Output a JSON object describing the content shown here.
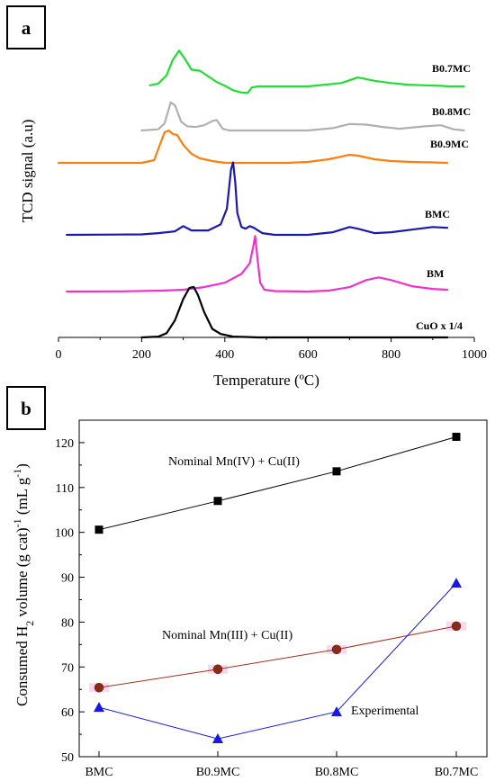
{
  "chart_data": [
    {
      "panel": "a",
      "type": "line",
      "xlabel": "Temperature (ºC)",
      "ylabel": "TCD signal (a.u)",
      "xlim": [
        0,
        1000
      ],
      "x_ticks": [
        0,
        200,
        400,
        600,
        800,
        1000
      ],
      "grid": false,
      "series": [
        {
          "name": "B0.7MC",
          "color": "#22dd33",
          "x": [
            220,
            240,
            260,
            275,
            290,
            305,
            320,
            340,
            360,
            380,
            400,
            420,
            440,
            455,
            465,
            480,
            520,
            600,
            680,
            720,
            760,
            800,
            840,
            880,
            920,
            940,
            975
          ],
          "y": [
            0.2,
            0.5,
            2.0,
            4.8,
            6.4,
            4.8,
            3.0,
            2.8,
            1.8,
            0.8,
            0.1,
            -0.7,
            -1.1,
            -1.2,
            -0.2,
            0.0,
            0.0,
            0.0,
            0.6,
            1.6,
            1.0,
            0.6,
            0.3,
            0.2,
            0.1,
            0.0,
            0.0
          ]
        },
        {
          "name": "B0.8MC",
          "color": "#b0b0b0",
          "x": [
            200,
            240,
            255,
            270,
            280,
            295,
            310,
            330,
            350,
            370,
            380,
            395,
            410,
            500,
            600,
            660,
            700,
            740,
            780,
            820,
            880,
            920,
            950,
            975
          ],
          "y": [
            0.0,
            0.2,
            1.2,
            4.8,
            4.3,
            1.5,
            0.7,
            0.6,
            0.9,
            1.6,
            1.8,
            0.3,
            0.0,
            0.0,
            0.0,
            0.4,
            1.1,
            1.0,
            0.6,
            0.3,
            0.7,
            0.9,
            0.2,
            0.0
          ]
        },
        {
          "name": "B0.9MC",
          "color": "#ff7f0e",
          "x": [
            0,
            200,
            230,
            255,
            265,
            275,
            285,
            300,
            320,
            340,
            370,
            400,
            450,
            550,
            600,
            650,
            700,
            720,
            760,
            800,
            850,
            900,
            935
          ],
          "y": [
            0.0,
            0.0,
            0.3,
            3.4,
            3.6,
            3.2,
            3.1,
            2.0,
            1.0,
            0.5,
            0.2,
            0.0,
            0.0,
            0.0,
            0.1,
            0.4,
            0.9,
            0.8,
            0.4,
            0.2,
            0.1,
            0.05,
            0.0
          ]
        },
        {
          "name": "BMC",
          "color": "#1a1aaa",
          "x": [
            20,
            200,
            240,
            280,
            300,
            320,
            360,
            390,
            405,
            415,
            420,
            425,
            430,
            440,
            450,
            460,
            470,
            490,
            520,
            600,
            660,
            700,
            720,
            760,
            800,
            850,
            900,
            935
          ],
          "y": [
            0.0,
            0.05,
            0.2,
            0.4,
            1.0,
            0.5,
            0.5,
            1.2,
            3.0,
            7.5,
            8.3,
            6.0,
            2.5,
            0.9,
            0.7,
            1.0,
            0.8,
            0.2,
            0.0,
            0.0,
            0.3,
            0.9,
            0.7,
            0.2,
            0.3,
            0.6,
            0.9,
            0.8
          ]
        },
        {
          "name": "BM",
          "color": "#ee33cc",
          "x": [
            20,
            150,
            250,
            300,
            350,
            400,
            440,
            460,
            468,
            473,
            478,
            485,
            495,
            520,
            600,
            650,
            700,
            740,
            770,
            800,
            850,
            900,
            935
          ],
          "y": [
            0.0,
            0.02,
            0.1,
            0.2,
            0.5,
            1.0,
            2.0,
            3.2,
            5.0,
            6.3,
            4.0,
            1.0,
            0.2,
            0.05,
            0.0,
            0.1,
            0.5,
            1.3,
            1.6,
            1.3,
            0.6,
            0.3,
            0.2
          ]
        },
        {
          "name": "CuO x 1/4",
          "color": "#000000",
          "x": [
            200,
            240,
            260,
            280,
            300,
            315,
            325,
            335,
            350,
            370,
            390,
            420,
            450,
            480,
            600,
            800,
            935
          ],
          "y": [
            0.0,
            0.1,
            0.5,
            2.0,
            4.5,
            5.8,
            5.9,
            5.0,
            3.0,
            1.0,
            0.4,
            0.1,
            0.05,
            0.0,
            0.0,
            0.0,
            0.0
          ]
        }
      ]
    },
    {
      "panel": "b",
      "type": "line",
      "xlabel": "",
      "ylabel": "Consumed H2 volume (g cat)-1 (mL g-1)",
      "categories": [
        "BMC",
        "B0.9MC",
        "B0.8MC",
        "B0.7MC"
      ],
      "ylim": [
        50,
        125
      ],
      "y_ticks": [
        50,
        60,
        70,
        80,
        90,
        100,
        110,
        120
      ],
      "grid": false,
      "series": [
        {
          "name": "Nominal Mn(IV) + Cu(II)",
          "values": [
            100.6,
            107.0,
            113.6,
            121.3
          ],
          "color": "#000000",
          "marker": "square"
        },
        {
          "name": "Nominal Mn(III) + Cu(II)",
          "values": [
            65.4,
            69.5,
            73.9,
            79.1
          ],
          "color": "#a0301e",
          "marker": "circle"
        },
        {
          "name": "Experimental",
          "values": [
            61.0,
            54.0,
            60.0,
            88.7
          ],
          "color": "#1818e6",
          "marker": "triangle"
        }
      ]
    }
  ],
  "panel_a": {
    "label": "a",
    "xlabel": "Temperature (ºC)",
    "ylabel": "TCD signal (a.u)"
  },
  "panel_b": {
    "label": "b",
    "ylabel_parts": [
      "Consumed H",
      "2",
      " volume (g cat)",
      "-1",
      " (mL g",
      "-1",
      ")"
    ]
  }
}
